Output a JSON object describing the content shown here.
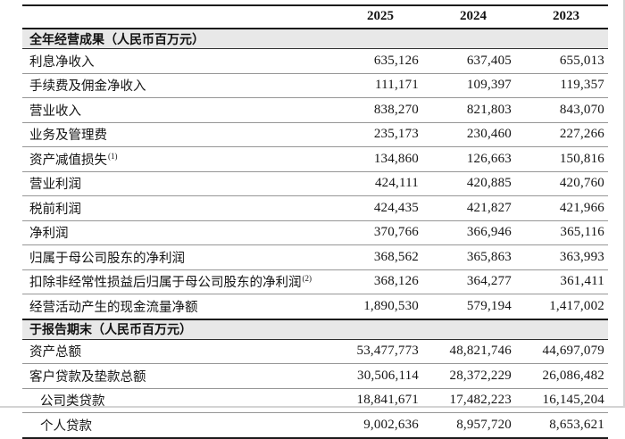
{
  "table": {
    "columns": [
      "2025",
      "2024",
      "2023"
    ],
    "sections": [
      {
        "title": "全年经营成果（人民币百万元）",
        "rows": [
          {
            "label": "利息净收入",
            "values": [
              "635,126",
              "637,405",
              "655,013"
            ]
          },
          {
            "label": "手续费及佣金净收入",
            "values": [
              "111,171",
              "109,397",
              "119,357"
            ]
          },
          {
            "label": "营业收入",
            "values": [
              "838,270",
              "821,803",
              "843,070"
            ]
          },
          {
            "label": "业务及管理费",
            "values": [
              "235,173",
              "230,460",
              "227,266"
            ]
          },
          {
            "label": "资产减值损失",
            "sup": "(1)",
            "values": [
              "134,860",
              "126,663",
              "150,816"
            ]
          },
          {
            "label": "营业利润",
            "values": [
              "424,111",
              "420,885",
              "420,760"
            ]
          },
          {
            "label": "税前利润",
            "values": [
              "424,435",
              "421,827",
              "421,966"
            ]
          },
          {
            "label": "净利润",
            "values": [
              "370,766",
              "366,946",
              "365,116"
            ]
          },
          {
            "label": "归属于母公司股东的净利润",
            "values": [
              "368,562",
              "365,863",
              "363,993"
            ]
          },
          {
            "label": "扣除非经常性损益后归属于母公司股东的净利润",
            "sup": "(2)",
            "values": [
              "368,126",
              "364,277",
              "361,411"
            ]
          },
          {
            "label": "经营活动产生的现金流量净额",
            "values": [
              "1,890,530",
              "579,194",
              "1,417,002"
            ]
          }
        ]
      },
      {
        "title": "于报告期末（人民币百万元）",
        "rows": [
          {
            "label": "资产总额",
            "values": [
              "53,477,773",
              "48,821,746",
              "44,697,079"
            ]
          },
          {
            "label": "客户贷款及垫款总额",
            "values": [
              "30,506,114",
              "28,372,229",
              "26,086,482"
            ]
          },
          {
            "label": "公司类贷款",
            "indent": true,
            "values": [
              "18,841,671",
              "17,482,223",
              "16,145,204"
            ]
          },
          {
            "label": "个人贷款",
            "indent": true,
            "values": [
              "9,002,636",
              "8,957,720",
              "8,653,621"
            ]
          }
        ]
      }
    ]
  },
  "colors": {
    "section_band_bg": "#e8e8e8",
    "heavy_rule": "#1b1b1b",
    "light_rule": "#969696",
    "text": "#141414"
  }
}
